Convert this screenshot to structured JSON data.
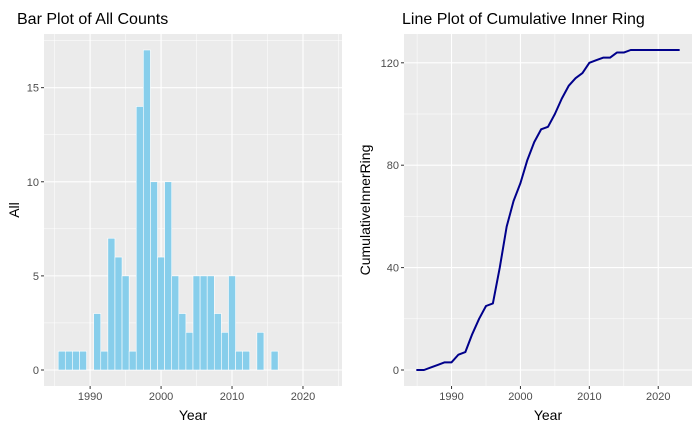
{
  "chart_data": [
    {
      "type": "bar",
      "title": "Bar Plot of All Counts",
      "xlabel": "Year",
      "ylabel": "All",
      "x_ticks": [
        1990,
        2000,
        2010,
        2020
      ],
      "y_ticks": [
        0,
        5,
        10,
        15
      ],
      "xlim": [
        1983.5,
        2025.5
      ],
      "ylim": [
        -0.85,
        17.85
      ],
      "bar_color": "#87CEEB",
      "grid": true,
      "x": [
        1986,
        1987,
        1988,
        1989,
        1991,
        1992,
        1993,
        1994,
        1995,
        1996,
        1997,
        1998,
        1999,
        2000,
        2001,
        2002,
        2003,
        2004,
        2005,
        2006,
        2007,
        2008,
        2009,
        2010,
        2011,
        2012,
        2014,
        2016
      ],
      "values": [
        1,
        1,
        1,
        1,
        3,
        1,
        7,
        6,
        5,
        1,
        14,
        17,
        10,
        6,
        10,
        5,
        3,
        2,
        5,
        5,
        5,
        3,
        2,
        5,
        1,
        1,
        2,
        1
      ]
    },
    {
      "type": "line",
      "title": "Line Plot of Cumulative Inner Ring",
      "xlabel": "Year",
      "ylabel": "CumulativeInnerRing",
      "x_ticks": [
        1990,
        2000,
        2010,
        2020
      ],
      "y_ticks": [
        0,
        40,
        80,
        120
      ],
      "xlim": [
        1983.1,
        2024.9
      ],
      "ylim": [
        -6.25,
        131.25
      ],
      "line_color": "#00008B",
      "grid": true,
      "x": [
        1985,
        1986,
        1987,
        1988,
        1989,
        1990,
        1991,
        1992,
        1993,
        1994,
        1995,
        1996,
        1997,
        1998,
        1999,
        2000,
        2001,
        2002,
        2003,
        2004,
        2005,
        2006,
        2007,
        2008,
        2009,
        2010,
        2011,
        2012,
        2013,
        2014,
        2015,
        2016,
        2017,
        2018,
        2019,
        2020,
        2021,
        2022,
        2023
      ],
      "y": [
        0,
        0,
        1,
        2,
        3,
        3,
        6,
        7,
        14,
        20,
        25,
        26,
        40,
        56,
        66,
        73,
        82,
        89,
        94,
        95,
        100,
        106,
        111,
        114,
        116,
        120,
        121,
        122,
        122,
        124,
        124,
        125,
        125,
        125,
        125,
        125,
        125,
        125,
        125
      ]
    }
  ]
}
